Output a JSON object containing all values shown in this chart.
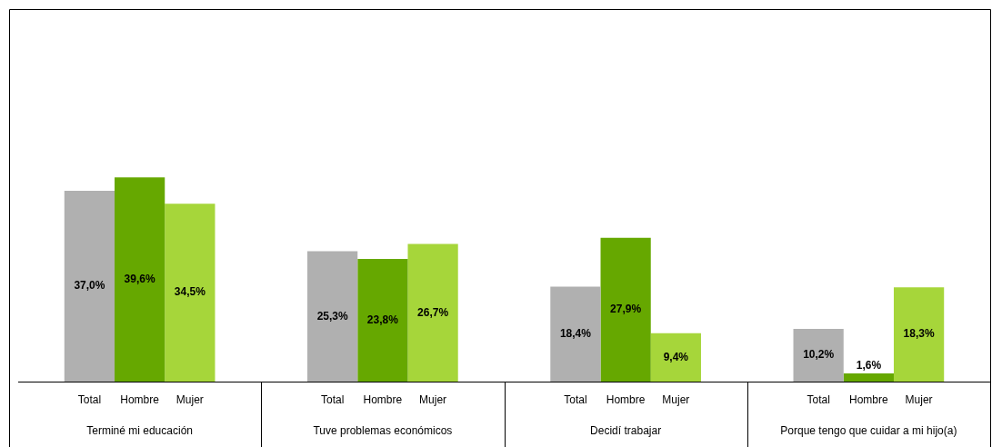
{
  "chart_data": {
    "type": "bar",
    "categories": [
      "Terminé mi educación",
      "Tuve problemas económicos",
      "Decidí trabajar",
      "Porque tengo que cuidar a mi hijo(a)"
    ],
    "series": [
      {
        "name": "Total",
        "color": "#b0b0b0",
        "values": [
          37.0,
          25.3,
          18.4,
          10.2
        ],
        "value_labels": [
          "37,0%",
          "25,3%",
          "18,4%",
          "10,2%"
        ]
      },
      {
        "name": "Hombre",
        "color": "#66a800",
        "values": [
          39.6,
          23.8,
          27.9,
          1.6
        ],
        "value_labels": [
          "39,6%",
          "23,8%",
          "27,9%",
          "1,6%"
        ]
      },
      {
        "name": "Mujer",
        "color": "#a6d63a",
        "values": [
          34.5,
          26.7,
          9.4,
          18.3
        ],
        "value_labels": [
          "34,5%",
          "26,7%",
          "9,4%",
          "18,3%"
        ]
      }
    ],
    "legend": false
  }
}
